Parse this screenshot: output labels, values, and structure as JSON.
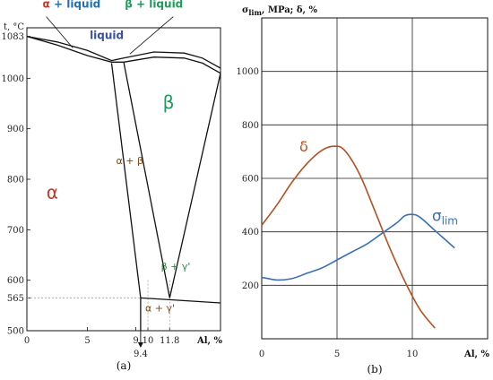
{
  "chart_data": [
    {
      "type": "line",
      "panel_caption": "(a)",
      "xlabel": "Al, %",
      "ylabel": "t, °C",
      "x_ticks": [
        "0",
        "5",
        "9",
        "10",
        "11.8"
      ],
      "x_extra_tick": "9.4",
      "y_ticks": [
        "1083",
        "1000",
        "900",
        "800",
        "700",
        "600",
        "565",
        "500"
      ],
      "xlim": [
        0,
        16
      ],
      "ylim": [
        500,
        1100
      ],
      "phase_labels": [
        {
          "name": "alpha_liquid",
          "alpha": "α",
          "rest": " + liquid",
          "x": 1.3,
          "y": 1140
        },
        {
          "name": "beta_liquid",
          "beta": "β",
          "rest": " + liquid",
          "x": 10.5,
          "y": 1140
        },
        {
          "name": "liquid",
          "text": "liquid",
          "x": 6.6,
          "y": 1078
        },
        {
          "name": "beta",
          "text": "β",
          "x": 11.7,
          "y": 940
        },
        {
          "name": "alpha",
          "text": "α",
          "x": 2.1,
          "y": 762
        },
        {
          "name": "alpha_beta",
          "text": "α + β",
          "x": 8.5,
          "y": 830
        },
        {
          "name": "beta_gamma",
          "text": "β + γ'",
          "x": 12.3,
          "y": 621
        },
        {
          "name": "alpha_gamma",
          "text": "α + γ'",
          "x": 11.0,
          "y": 538
        }
      ],
      "boundaries": [
        {
          "name": "liquidus",
          "points": [
            [
              0,
              1083
            ],
            [
              2.5,
              1072
            ],
            [
              5,
              1055
            ],
            [
              7,
              1035
            ],
            [
              8,
              1040
            ],
            [
              10.5,
              1052
            ],
            [
              13,
              1050
            ],
            [
              14.5,
              1040
            ],
            [
              16,
              1020
            ]
          ]
        },
        {
          "name": "solidus",
          "points": [
            [
              0,
              1083
            ],
            [
              2.5,
              1066
            ],
            [
              5,
              1045
            ],
            [
              7,
              1032
            ],
            [
              8,
              1032
            ],
            [
              10.5,
              1042
            ],
            [
              13,
              1040
            ],
            [
              14.5,
              1030
            ],
            [
              16,
              1010
            ]
          ]
        },
        {
          "name": "alpha_solvus",
          "points": [
            [
              7,
              1030
            ],
            [
              9.4,
              565
            ]
          ]
        },
        {
          "name": "beta_left",
          "points": [
            [
              8,
              1032
            ],
            [
              11.8,
              565
            ]
          ]
        },
        {
          "name": "beta_right",
          "points": [
            [
              16,
              1010
            ],
            [
              11.8,
              565
            ]
          ]
        },
        {
          "name": "eutectoid",
          "points": [
            [
              9.4,
              565
            ],
            [
              16,
              555
            ]
          ]
        },
        {
          "name": "alpha_gamma_divider",
          "points": [
            [
              9.4,
              565
            ],
            [
              9.4,
              500
            ]
          ]
        }
      ]
    },
    {
      "type": "line",
      "panel_caption": "(b)",
      "ylabel": "σlim, MPa; δ, %",
      "xlabel": "Al, %",
      "x_ticks": [
        "0",
        "5",
        "10"
      ],
      "y_ticks": [
        "1000",
        "800",
        "600",
        "400",
        "200"
      ],
      "xlim": [
        0,
        15
      ],
      "ylim": [
        0,
        1200
      ],
      "series": [
        {
          "name": "δ",
          "x": [
            0,
            1,
            2,
            3,
            4,
            4.8,
            5.5,
            6.5,
            7.5,
            8.5,
            9.5,
            10.5,
            11.5
          ],
          "y": [
            425,
            500,
            585,
            655,
            705,
            720,
            705,
            615,
            480,
            340,
            215,
            110,
            40
          ]
        },
        {
          "name": "σlim",
          "x": [
            0,
            1,
            2,
            3,
            4,
            5,
            6,
            7,
            8,
            9,
            9.5,
            10,
            10.5,
            11.5,
            12.8
          ],
          "y": [
            230,
            220,
            225,
            245,
            265,
            295,
            325,
            355,
            395,
            435,
            460,
            465,
            455,
            405,
            340
          ]
        }
      ],
      "series_labels": [
        {
          "name": "delta",
          "text": "δ",
          "x": 2.5,
          "y": 700
        },
        {
          "name": "sigma",
          "main": "σ",
          "sub": "lim",
          "x": 11.3,
          "y": 440
        }
      ]
    }
  ],
  "colors": {
    "alpha": "#c0392b",
    "beta_blue": "#1f6fb5",
    "beta_green": "#1f9a5a",
    "liquid": "#3b4fa0",
    "alpha_beta": "#7a4a12",
    "beta_gamma": "#2e8b3f",
    "alpha_gamma": "#7a4a12",
    "delta_curve": "#b5511e",
    "sigma_curve": "#3a6fb8",
    "axis": "#111111"
  }
}
